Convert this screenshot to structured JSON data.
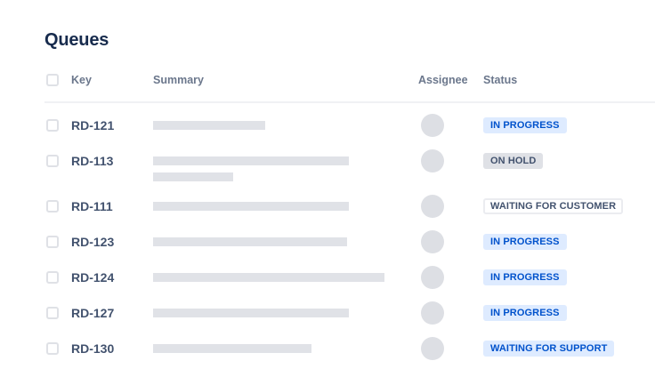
{
  "page": {
    "title": "Queues"
  },
  "table": {
    "columns": [
      "Key",
      "Summary",
      "Assignee",
      "Status"
    ],
    "rows": [
      {
        "key": "RD-121",
        "summary_bar_widths": [
          126
        ],
        "status": "IN PROGRESS",
        "status_style": "blue"
      },
      {
        "key": "RD-113",
        "summary_bar_widths": [
          220,
          90
        ],
        "status": "ON HOLD",
        "status_style": "gray"
      },
      {
        "key": "RD-111",
        "summary_bar_widths": [
          220
        ],
        "status": "WAITING FOR CUSTOMER",
        "status_style": "outline"
      },
      {
        "key": "RD-123",
        "summary_bar_widths": [
          218
        ],
        "status": "IN PROGRESS",
        "status_style": "blue"
      },
      {
        "key": "RD-124",
        "summary_bar_widths": [
          260
        ],
        "status": "IN PROGRESS",
        "status_style": "blue"
      },
      {
        "key": "RD-127",
        "summary_bar_widths": [
          220
        ],
        "status": "IN PROGRESS",
        "status_style": "blue"
      },
      {
        "key": "RD-130",
        "summary_bar_widths": [
          178
        ],
        "status": "WAITING FOR SUPPORT",
        "status_style": "blue"
      }
    ]
  },
  "colors": {
    "title_text": "#172B4D",
    "header_text": "#6B778C",
    "key_text": "#42526E",
    "divider": "#F0F1F4",
    "placeholder_bar": "#E0E2E7",
    "avatar_bg": "#DDDFE4",
    "badge_blue_bg": "#DEEBFF",
    "badge_blue_text": "#0052CC",
    "badge_gray_bg": "#DFE1E6",
    "badge_gray_text": "#42526E",
    "badge_outline_border": "#EBECF0",
    "badge_outline_text": "#42526E"
  }
}
